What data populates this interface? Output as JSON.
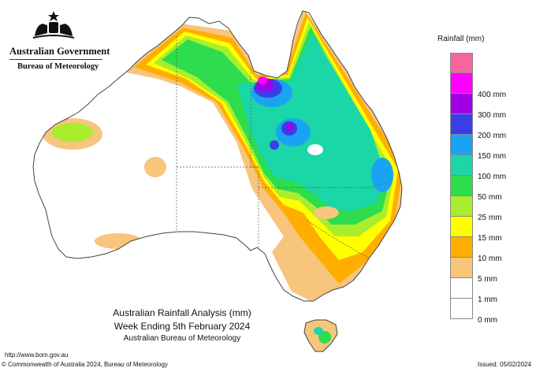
{
  "header": {
    "government": "Australian Government",
    "agency": "Bureau of Meteorology"
  },
  "map": {
    "title_line1": "Australian Rainfall Analysis (mm)",
    "title_line2": "Week Ending 5th February 2024",
    "title_line3": "Australian Bureau of Meteorology"
  },
  "footer": {
    "url": "http://www.bom.gov.au",
    "copyright": "© Commonwealth of Australia 2024, Bureau of Meteorology",
    "issued": "Issued: 05/02/2024"
  },
  "legend": {
    "title": "Rainfall (mm)",
    "items": [
      {
        "label": "",
        "color": "#f7659f"
      },
      {
        "label": "400 mm",
        "color": "#ff00ff"
      },
      {
        "label": "300 mm",
        "color": "#a100e6"
      },
      {
        "label": "200 mm",
        "color": "#3a3ee8"
      },
      {
        "label": "150 mm",
        "color": "#1aa3f2"
      },
      {
        "label": "100 mm",
        "color": "#1bd6a6"
      },
      {
        "label": "50 mm",
        "color": "#2ddd4d"
      },
      {
        "label": "25 mm",
        "color": "#a8ee2f"
      },
      {
        "label": "15 mm",
        "color": "#ffff00"
      },
      {
        "label": "10 mm",
        "color": "#ffae00"
      },
      {
        "label": "5 mm",
        "color": "#f7c57c"
      },
      {
        "label": "1 mm",
        "color": "#ffffff"
      },
      {
        "label": "0 mm",
        "color": "#ffffff"
      }
    ]
  }
}
